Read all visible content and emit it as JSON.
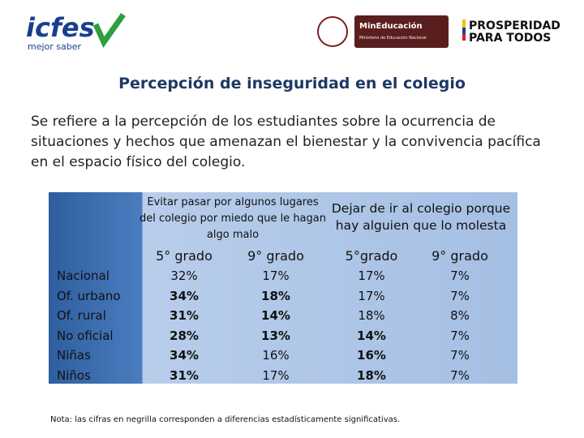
{
  "header": {
    "logo_left": {
      "name": "icfes",
      "tagline": "mejor saber"
    },
    "logo_center": {
      "name": "MinEducación",
      "subtitle": "Ministerio de Educación Nacional"
    },
    "logo_right": {
      "line1": "PROSPERIDAD",
      "line2": "PARA TODOS"
    }
  },
  "title": "Percepción de inseguridad en el colegio",
  "description": "Se refiere a la percepción de los estudiantes sobre la ocurrencia de situaciones y hechos que amenazan el bienestar y la convivencia pacífica en el espacio físico del colegio.",
  "table": {
    "groups": [
      "Evitar pasar por algunos lugares del colegio por miedo que le hagan algo malo",
      "Dejar de ir al colegio porque hay alguien que lo molesta"
    ],
    "columns": [
      "5° grado",
      "9° grado",
      "5°grado",
      "9° grado"
    ],
    "rows": [
      {
        "label": "Nacional",
        "cells": [
          "32%",
          "17%",
          "17%",
          "7%"
        ],
        "bold": [
          false,
          false,
          false,
          false
        ]
      },
      {
        "label": "Of. urbano",
        "cells": [
          "34%",
          "18%",
          "17%",
          "7%"
        ],
        "bold": [
          true,
          true,
          false,
          false
        ]
      },
      {
        "label": "Of. rural",
        "cells": [
          "31%",
          "14%",
          "18%",
          "8%"
        ],
        "bold": [
          true,
          true,
          false,
          false
        ]
      },
      {
        "label": "No oficial",
        "cells": [
          "28%",
          "13%",
          "14%",
          "7%"
        ],
        "bold": [
          true,
          true,
          true,
          false
        ]
      },
      {
        "label": "Niñas",
        "cells": [
          "34%",
          "16%",
          "16%",
          "7%"
        ],
        "bold": [
          true,
          false,
          true,
          false
        ]
      },
      {
        "label": "Niños",
        "cells": [
          "31%",
          "17%",
          "18%",
          "7%"
        ],
        "bold": [
          true,
          false,
          true,
          false
        ]
      }
    ]
  },
  "note": "Nota: las cifras en negrilla corresponden a diferencias estadísticamente significativas."
}
